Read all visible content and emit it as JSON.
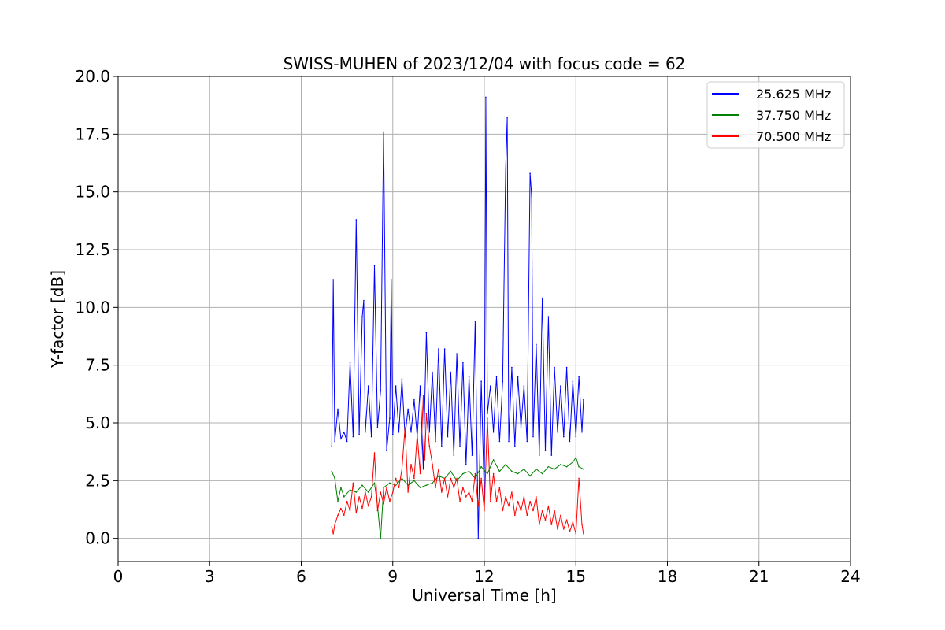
{
  "chart_data": {
    "type": "line",
    "title": "SWISS-MUHEN of 2023/12/04 with focus code = 62",
    "xlabel": "Universal Time [h]",
    "ylabel": "Y-factor [dB]",
    "xlim": [
      0,
      24
    ],
    "ylim": [
      -1.0,
      20.0
    ],
    "x_ticks": [
      0,
      3,
      6,
      9,
      12,
      15,
      18,
      21,
      24
    ],
    "x_tick_labels": [
      "0",
      "3",
      "6",
      "9",
      "12",
      "15",
      "18",
      "21",
      "24"
    ],
    "y_ticks": [
      0,
      2.5,
      5,
      7.5,
      10,
      12.5,
      15,
      17.5,
      20
    ],
    "y_tick_labels": [
      "0.0",
      "2.5",
      "5.0",
      "7.5",
      "10.0",
      "12.5",
      "15.0",
      "17.5",
      "20.0"
    ],
    "grid": true,
    "legend_position": "top-right",
    "series": [
      {
        "name": "25.625 MHz",
        "color": "#0000ff",
        "points": [
          [
            7.0,
            4.0
          ],
          [
            7.05,
            11.2
          ],
          [
            7.1,
            4.2
          ],
          [
            7.2,
            5.6
          ],
          [
            7.3,
            4.3
          ],
          [
            7.4,
            4.6
          ],
          [
            7.5,
            4.2
          ],
          [
            7.6,
            7.6
          ],
          [
            7.7,
            4.4
          ],
          [
            7.8,
            13.8
          ],
          [
            7.9,
            4.5
          ],
          [
            8.0,
            9.6
          ],
          [
            8.05,
            10.3
          ],
          [
            8.1,
            4.6
          ],
          [
            8.2,
            6.6
          ],
          [
            8.3,
            4.4
          ],
          [
            8.4,
            11.8
          ],
          [
            8.5,
            4.8
          ],
          [
            8.6,
            6.4
          ],
          [
            8.7,
            17.6
          ],
          [
            8.8,
            3.8
          ],
          [
            8.9,
            5.2
          ],
          [
            8.95,
            11.2
          ],
          [
            9.0,
            4.5
          ],
          [
            9.1,
            6.6
          ],
          [
            9.2,
            4.6
          ],
          [
            9.3,
            6.9
          ],
          [
            9.4,
            4.4
          ],
          [
            9.5,
            5.6
          ],
          [
            9.6,
            4.6
          ],
          [
            9.7,
            6.0
          ],
          [
            9.8,
            4.4
          ],
          [
            9.9,
            6.6
          ],
          [
            10.0,
            3.0
          ],
          [
            10.1,
            8.9
          ],
          [
            10.2,
            4.6
          ],
          [
            10.3,
            7.2
          ],
          [
            10.4,
            4.2
          ],
          [
            10.5,
            8.2
          ],
          [
            10.6,
            4.0
          ],
          [
            10.7,
            8.2
          ],
          [
            10.8,
            4.4
          ],
          [
            10.9,
            7.2
          ],
          [
            11.0,
            3.6
          ],
          [
            11.1,
            8.0
          ],
          [
            11.2,
            4.0
          ],
          [
            11.3,
            7.6
          ],
          [
            11.4,
            3.2
          ],
          [
            11.5,
            7.0
          ],
          [
            11.6,
            3.6
          ],
          [
            11.7,
            9.4
          ],
          [
            11.8,
            0.0
          ],
          [
            11.9,
            6.8
          ],
          [
            12.0,
            1.8
          ],
          [
            12.05,
            19.1
          ],
          [
            12.1,
            5.4
          ],
          [
            12.2,
            6.6
          ],
          [
            12.3,
            4.6
          ],
          [
            12.4,
            7.0
          ],
          [
            12.5,
            4.2
          ],
          [
            12.6,
            6.8
          ],
          [
            12.7,
            16.0
          ],
          [
            12.75,
            18.2
          ],
          [
            12.8,
            4.2
          ],
          [
            12.9,
            7.4
          ],
          [
            13.0,
            4.0
          ],
          [
            13.1,
            7.0
          ],
          [
            13.2,
            4.8
          ],
          [
            13.3,
            6.6
          ],
          [
            13.4,
            4.2
          ],
          [
            13.5,
            15.8
          ],
          [
            13.55,
            14.8
          ],
          [
            13.6,
            4.4
          ],
          [
            13.7,
            8.4
          ],
          [
            13.8,
            3.6
          ],
          [
            13.9,
            10.4
          ],
          [
            14.0,
            3.8
          ],
          [
            14.1,
            9.6
          ],
          [
            14.2,
            3.6
          ],
          [
            14.3,
            7.4
          ],
          [
            14.4,
            4.6
          ],
          [
            14.5,
            6.6
          ],
          [
            14.6,
            4.4
          ],
          [
            14.7,
            7.4
          ],
          [
            14.8,
            4.2
          ],
          [
            14.9,
            6.8
          ],
          [
            15.0,
            4.4
          ],
          [
            15.1,
            7.0
          ],
          [
            15.2,
            4.6
          ],
          [
            15.25,
            6.0
          ]
        ]
      },
      {
        "name": "37.750 MHz",
        "color": "#008000",
        "points": [
          [
            7.0,
            2.9
          ],
          [
            7.1,
            2.6
          ],
          [
            7.2,
            1.6
          ],
          [
            7.3,
            2.2
          ],
          [
            7.4,
            1.8
          ],
          [
            7.6,
            2.1
          ],
          [
            7.8,
            2.0
          ],
          [
            8.0,
            2.3
          ],
          [
            8.2,
            2.0
          ],
          [
            8.4,
            2.4
          ],
          [
            8.5,
            1.4
          ],
          [
            8.6,
            0.0
          ],
          [
            8.7,
            2.2
          ],
          [
            8.9,
            2.4
          ],
          [
            9.1,
            2.3
          ],
          [
            9.3,
            2.6
          ],
          [
            9.5,
            2.3
          ],
          [
            9.7,
            2.5
          ],
          [
            9.9,
            2.2
          ],
          [
            10.1,
            2.3
          ],
          [
            10.3,
            2.4
          ],
          [
            10.5,
            2.7
          ],
          [
            10.7,
            2.6
          ],
          [
            10.9,
            2.9
          ],
          [
            11.1,
            2.5
          ],
          [
            11.3,
            2.8
          ],
          [
            11.5,
            2.9
          ],
          [
            11.7,
            2.6
          ],
          [
            11.9,
            3.1
          ],
          [
            12.1,
            2.8
          ],
          [
            12.3,
            3.4
          ],
          [
            12.5,
            2.9
          ],
          [
            12.7,
            3.2
          ],
          [
            12.9,
            2.9
          ],
          [
            13.1,
            2.8
          ],
          [
            13.3,
            3.0
          ],
          [
            13.5,
            2.7
          ],
          [
            13.7,
            3.0
          ],
          [
            13.9,
            2.8
          ],
          [
            14.1,
            3.1
          ],
          [
            14.3,
            3.0
          ],
          [
            14.5,
            3.2
          ],
          [
            14.7,
            3.1
          ],
          [
            14.9,
            3.3
          ],
          [
            15.0,
            3.5
          ],
          [
            15.1,
            3.1
          ],
          [
            15.25,
            3.0
          ]
        ]
      },
      {
        "name": "70.500 MHz",
        "color": "#ff0000",
        "points": [
          [
            7.0,
            0.5
          ],
          [
            7.05,
            0.2
          ],
          [
            7.1,
            0.6
          ],
          [
            7.2,
            1.0
          ],
          [
            7.3,
            1.3
          ],
          [
            7.4,
            1.0
          ],
          [
            7.5,
            1.6
          ],
          [
            7.6,
            1.2
          ],
          [
            7.7,
            2.4
          ],
          [
            7.8,
            1.1
          ],
          [
            7.9,
            1.8
          ],
          [
            8.0,
            1.3
          ],
          [
            8.1,
            2.0
          ],
          [
            8.2,
            1.4
          ],
          [
            8.3,
            1.8
          ],
          [
            8.4,
            3.7
          ],
          [
            8.5,
            1.2
          ],
          [
            8.6,
            2.0
          ],
          [
            8.7,
            1.5
          ],
          [
            8.8,
            2.2
          ],
          [
            8.9,
            1.6
          ],
          [
            9.0,
            2.0
          ],
          [
            9.1,
            2.6
          ],
          [
            9.2,
            2.2
          ],
          [
            9.3,
            3.0
          ],
          [
            9.4,
            4.8
          ],
          [
            9.5,
            2.0
          ],
          [
            9.6,
            3.2
          ],
          [
            9.7,
            2.6
          ],
          [
            9.8,
            4.5
          ],
          [
            9.9,
            2.8
          ],
          [
            10.0,
            6.2
          ],
          [
            10.05,
            3.4
          ],
          [
            10.1,
            5.4
          ],
          [
            10.2,
            4.0
          ],
          [
            10.3,
            3.2
          ],
          [
            10.4,
            2.2
          ],
          [
            10.5,
            3.0
          ],
          [
            10.6,
            2.0
          ],
          [
            10.7,
            2.6
          ],
          [
            10.8,
            1.8
          ],
          [
            10.9,
            2.6
          ],
          [
            11.0,
            2.2
          ],
          [
            11.1,
            2.6
          ],
          [
            11.2,
            1.6
          ],
          [
            11.3,
            2.2
          ],
          [
            11.4,
            1.8
          ],
          [
            11.5,
            2.0
          ],
          [
            11.6,
            1.6
          ],
          [
            11.7,
            2.8
          ],
          [
            11.8,
            1.4
          ],
          [
            11.9,
            2.6
          ],
          [
            12.0,
            1.2
          ],
          [
            12.1,
            5.2
          ],
          [
            12.2,
            1.6
          ],
          [
            12.3,
            2.8
          ],
          [
            12.4,
            1.6
          ],
          [
            12.5,
            2.2
          ],
          [
            12.6,
            1.2
          ],
          [
            12.7,
            1.8
          ],
          [
            12.8,
            1.4
          ],
          [
            12.9,
            2.0
          ],
          [
            13.0,
            1.0
          ],
          [
            13.1,
            1.6
          ],
          [
            13.2,
            1.2
          ],
          [
            13.3,
            1.8
          ],
          [
            13.4,
            1.0
          ],
          [
            13.5,
            1.6
          ],
          [
            13.6,
            1.2
          ],
          [
            13.7,
            1.8
          ],
          [
            13.8,
            0.6
          ],
          [
            13.9,
            1.2
          ],
          [
            14.0,
            0.8
          ],
          [
            14.1,
            1.4
          ],
          [
            14.2,
            0.6
          ],
          [
            14.3,
            1.2
          ],
          [
            14.4,
            0.4
          ],
          [
            14.5,
            1.0
          ],
          [
            14.6,
            0.4
          ],
          [
            14.7,
            0.8
          ],
          [
            14.8,
            0.3
          ],
          [
            14.9,
            0.7
          ],
          [
            15.0,
            0.2
          ],
          [
            15.1,
            2.6
          ],
          [
            15.2,
            0.6
          ],
          [
            15.25,
            0.2
          ]
        ]
      }
    ]
  }
}
